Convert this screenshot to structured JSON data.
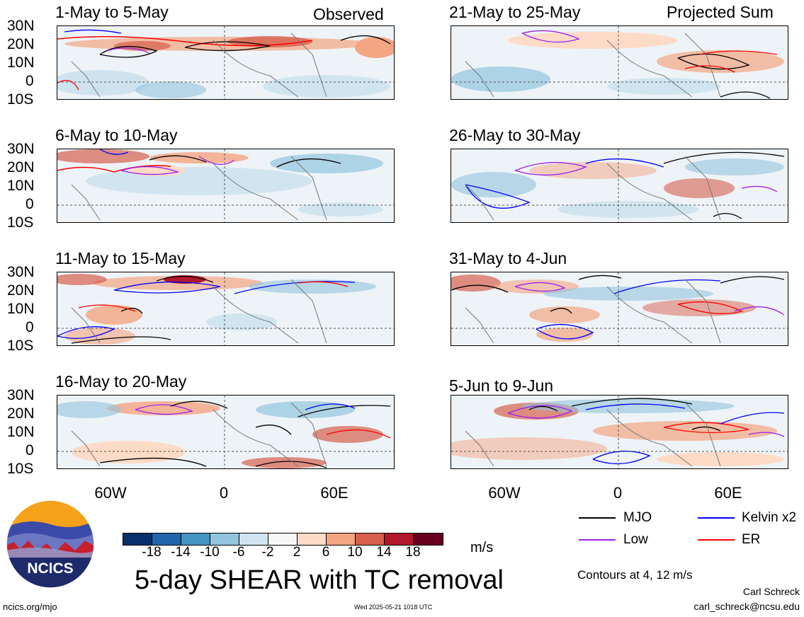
{
  "panels_left": [
    {
      "title": "1-May to 5-May",
      "tag": "Observed"
    },
    {
      "title": "6-May to 10-May",
      "tag": ""
    },
    {
      "title": "11-May to 15-May",
      "tag": ""
    },
    {
      "title": "16-May to 20-May",
      "tag": ""
    }
  ],
  "panels_right": [
    {
      "title": "21-May to 25-May",
      "tag": "Projected Sum"
    },
    {
      "title": "26-May to 30-May",
      "tag": ""
    },
    {
      "title": "31-May to 4-Jun",
      "tag": ""
    },
    {
      "title": "5-Jun to 9-Jun",
      "tag": ""
    }
  ],
  "lat_labels": [
    "30N",
    "20N",
    "10N",
    "0",
    "10S"
  ],
  "lon_labels": [
    "60W",
    "0",
    "60E"
  ],
  "colorbar": {
    "ticks": [
      "-18",
      "-14",
      "-10",
      "-6",
      "-2",
      "2",
      "6",
      "10",
      "14",
      "18"
    ],
    "colors": [
      "#08306b",
      "#2166ac",
      "#4393c3",
      "#92c5de",
      "#d1e5f0",
      "#f7f7f7",
      "#fddbc7",
      "#f4a582",
      "#d6604d",
      "#b2182b",
      "#67001f"
    ],
    "unit": "m/s"
  },
  "legend": {
    "items": [
      {
        "label": "MJO",
        "color": "#000000"
      },
      {
        "label": "Kelvin x2",
        "color": "#0000ff"
      },
      {
        "label": "Low",
        "color": "#a020f0"
      },
      {
        "label": "ER",
        "color": "#ff0000"
      }
    ],
    "contours_note": "Contours at 4, 12 m/s"
  },
  "main_title": "5-day SHEAR with TC removal",
  "logo_text": "NCICS",
  "footer": {
    "url": "ncics.org/mjo",
    "timestamp": "Wed 2025-05-21 1018 UTC",
    "author": "Carl Schreck",
    "email": "carl_schreck@ncsu.edu"
  }
}
